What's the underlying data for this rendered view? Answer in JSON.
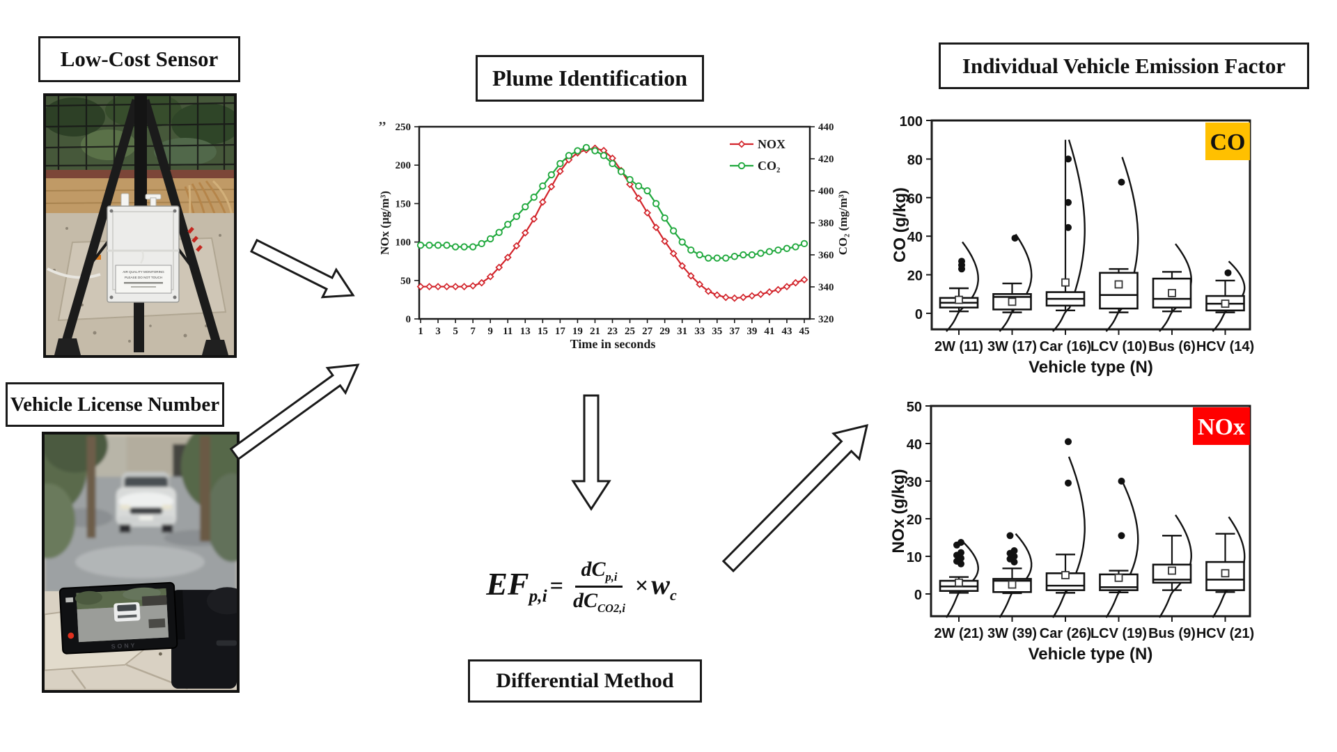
{
  "figure": {
    "labels": {
      "low_cost_sensor": "Low-Cost Sensor",
      "vehicle_license_number": "Vehicle License Number",
      "plume_identification": "Plume Identification",
      "differential_method": "Differential Method",
      "individual_vehicle_emission_factor": "Individual Vehicle Emission Factor"
    },
    "sensor_photo": {
      "device_label_line1": "AIR QUALITY MONITORING",
      "device_label_line2": "PLEASE DO NOT TOUCH"
    },
    "camera_photo": {
      "camera_brand": "SONY"
    },
    "equation": {
      "lhs": "EF",
      "lhs_sub": "p,i",
      "equals": "=",
      "numerator": "dC",
      "numerator_sub": "p,i",
      "denominator": "dC",
      "denominator_sub": "CO2,i",
      "operator": "×",
      "weight": "w",
      "weight_sub": "c"
    }
  },
  "chart_data": [
    {
      "type": "line",
      "title": "Plume Identification",
      "xlabel": "Time in seconds",
      "ylabel_left": "NOx (µg/m³)",
      "ylabel_right": "CO₂ (mg/m³)",
      "annotation": "’’",
      "x_range": [
        1,
        45
      ],
      "xticks": [
        1,
        3,
        5,
        7,
        9,
        11,
        13,
        15,
        17,
        19,
        21,
        23,
        25,
        27,
        29,
        31,
        33,
        35,
        37,
        39,
        41,
        43,
        45
      ],
      "ylim_left": [
        0,
        250
      ],
      "yticks_left": [
        0,
        50,
        100,
        150,
        200,
        250
      ],
      "ylim_right": [
        320,
        440
      ],
      "yticks_right": [
        320,
        340,
        360,
        380,
        400,
        420,
        440
      ],
      "grid": false,
      "legend_position": "top-right-inside",
      "series": [
        {
          "name": "NOX",
          "axis": "left",
          "color": "#D2232A",
          "marker": "diamond",
          "values": [
            42,
            42,
            42,
            42,
            42,
            42,
            43,
            47,
            55,
            67,
            80,
            95,
            112,
            130,
            152,
            172,
            192,
            207,
            216,
            220,
            222,
            219,
            209,
            193,
            175,
            157,
            138,
            119,
            101,
            85,
            69,
            56,
            45,
            36,
            31,
            28,
            27,
            28,
            30,
            32,
            35,
            38,
            42,
            47,
            51
          ]
        },
        {
          "name": "CO₂",
          "axis": "right",
          "color": "#1FA83C",
          "marker": "circle",
          "values": [
            366,
            366,
            366,
            366,
            365,
            365,
            365,
            367,
            370,
            374,
            379,
            384,
            390,
            396,
            403,
            410,
            417,
            422,
            425,
            427,
            425,
            422,
            417,
            412,
            407,
            403,
            400,
            392,
            383,
            375,
            368,
            363,
            360,
            358,
            358,
            358,
            359,
            360,
            360,
            361,
            362,
            363,
            364,
            365,
            367
          ]
        }
      ]
    },
    {
      "type": "box",
      "label": "CO",
      "badge_color": "#FFC000",
      "badge_text_color": "#111111",
      "ylabel": "CO (g/kg)",
      "xlabel": "Vehicle type (N)",
      "ylim": [
        0,
        100
      ],
      "yticks": [
        0,
        20,
        40,
        60,
        80,
        100
      ],
      "categories": [
        "2W (11)",
        "3W (17)",
        "Car (16)",
        "LCV (10)",
        "Bus (6)",
        "HCV (14)"
      ],
      "boxes": [
        {
          "q1": 3,
          "q3": 8,
          "median": 5.5,
          "mean": 7,
          "whisker_low": 1,
          "whisker_high": 13,
          "cap_high": true,
          "outliers": [
            23,
            25,
            27
          ],
          "curve_top": 37
        },
        {
          "q1": 2,
          "q3": 10,
          "median": 8.5,
          "mean": 6,
          "whisker_low": 0.5,
          "whisker_high": 15.5,
          "cap_high": true,
          "outliers": [
            39
          ],
          "curve_top": 41
        },
        {
          "q1": 4,
          "q3": 11,
          "median": 7.5,
          "mean": 16,
          "whisker_low": 1.5,
          "whisker_high": 90,
          "cap_high": false,
          "outliers": [
            44.5,
            57.5,
            80
          ],
          "curve_top": 90
        },
        {
          "q1": 2.5,
          "q3": 21,
          "median": 9.5,
          "mean": 15,
          "whisker_low": 0.5,
          "whisker_high": 23,
          "cap_high": true,
          "outliers": [
            68
          ],
          "curve_top": 81
        },
        {
          "q1": 3,
          "q3": 18,
          "median": 7.5,
          "mean": 10.5,
          "whisker_low": 1,
          "whisker_high": 21.5,
          "cap_high": true,
          "outliers": [],
          "curve_top": 36
        },
        {
          "q1": 1.5,
          "q3": 9,
          "median": 5,
          "mean": 5,
          "whisker_low": 0.5,
          "whisker_high": 17,
          "cap_high": true,
          "outliers": [
            21
          ],
          "curve_top": 27
        }
      ]
    },
    {
      "type": "box",
      "label": "NOx",
      "badge_color": "#FF0000",
      "badge_text_color": "#FFFFFF",
      "ylabel": "NOx (g/kg)",
      "xlabel": "Vehicle type (N)",
      "ylim": [
        0,
        50
      ],
      "yticks": [
        0,
        10,
        20,
        30,
        40,
        50
      ],
      "categories": [
        "2W (21)",
        "3W (39)",
        "Car (26)",
        "LCV (19)",
        "Bus (9)",
        "HCV (21)"
      ],
      "boxes": [
        {
          "q1": 0.8,
          "q3": 3.5,
          "median": 2,
          "mean": 3,
          "whisker_low": 0.3,
          "whisker_high": 4.5,
          "cap_high": true,
          "outliers": [
            8,
            8.7,
            9.5,
            10.3,
            11,
            13,
            13.7
          ],
          "curve_top": 14
        },
        {
          "q1": 0.5,
          "q3": 4,
          "median": 3.5,
          "mean": 2.5,
          "whisker_low": 0.2,
          "whisker_high": 6.8,
          "cap_high": true,
          "outliers": [
            8.5,
            9.3,
            10,
            10.8,
            11.5,
            15.5
          ],
          "curve_top": 16
        },
        {
          "q1": 1,
          "q3": 5.5,
          "median": 2.2,
          "mean": 5,
          "whisker_low": 0.3,
          "whisker_high": 10.5,
          "cap_high": true,
          "outliers": [
            29.5,
            40.5
          ],
          "curve_top": 36.5
        },
        {
          "q1": 1,
          "q3": 5.2,
          "median": 1.8,
          "mean": 4.3,
          "whisker_low": 0.4,
          "whisker_high": 6.2,
          "cap_high": true,
          "outliers": [
            15.5,
            30
          ],
          "curve_top": 30
        },
        {
          "q1": 3,
          "q3": 7.8,
          "median": 3.8,
          "mean": 6.2,
          "whisker_low": 1,
          "whisker_high": 15.5,
          "cap_high": true,
          "outliers": [],
          "curve_top": 21
        },
        {
          "q1": 1,
          "q3": 8.5,
          "median": 3.8,
          "mean": 5.5,
          "whisker_low": 0.5,
          "whisker_high": 16,
          "cap_high": true,
          "outliers": [],
          "curve_top": 20.5
        }
      ]
    }
  ]
}
